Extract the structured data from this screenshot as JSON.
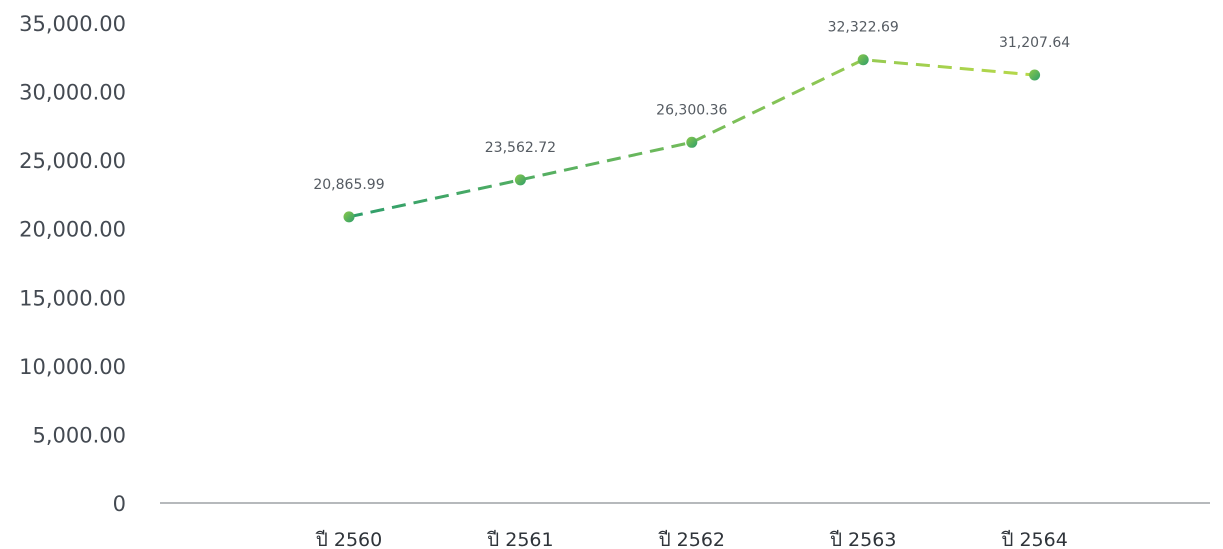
{
  "chart_data": {
    "type": "line",
    "categories": [
      "ปี 2560",
      "ปี 2561",
      "ปี 2562",
      "ปี 2563",
      "ปี 2564"
    ],
    "series": [
      {
        "values": [
          20865.99,
          23562.72,
          26300.36,
          32322.69,
          31207.64
        ],
        "data_labels": [
          "20,865.99",
          "23,562.72",
          "26,300.36",
          "32,322.69",
          "31,207.64"
        ]
      }
    ],
    "ylim": [
      0,
      35000
    ],
    "yticks": [
      0,
      5000,
      10000,
      15000,
      20000,
      25000,
      30000,
      35000
    ],
    "ytick_labels": [
      "0",
      "5,000.00",
      "10,000.00",
      "15,000.00",
      "20,000.00",
      "25,000.00",
      "30,000.00",
      "35,000.00"
    ],
    "line_style": "dashed",
    "gradient_colors": [
      "#2e9e6b",
      "#b8d94a"
    ],
    "marker_colors": [
      "#8cc94a",
      "#2e9e6b"
    ],
    "axis_color": "#8a8f94",
    "grid": false,
    "legend": "none"
  }
}
